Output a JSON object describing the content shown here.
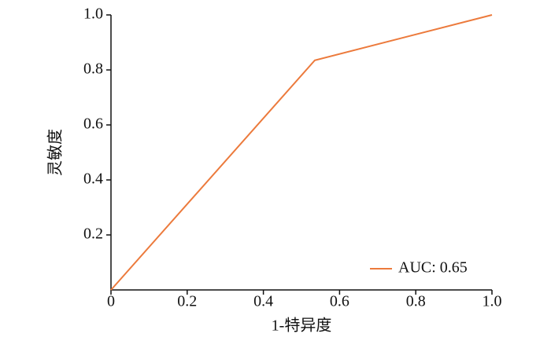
{
  "chart_data": {
    "type": "line",
    "x_label": "1-特异度",
    "y_label": "灵敏度",
    "series": [
      {
        "name": "AUC: 0.65",
        "color": "#ec7a3c",
        "x": [
          0,
          0.535,
          1
        ],
        "values": [
          0,
          0.835,
          1
        ]
      }
    ],
    "xlim": [
      0,
      1
    ],
    "ylim": [
      0,
      1
    ],
    "xticks": [
      0,
      0.2,
      0.4,
      0.6,
      0.8,
      {
        "value": 1,
        "label": "1.0"
      }
    ],
    "yticks": [
      0.2,
      0.4,
      0.6,
      0.8,
      {
        "value": 1,
        "label": "1.0"
      }
    ],
    "grid": false,
    "legend": "lower right"
  }
}
